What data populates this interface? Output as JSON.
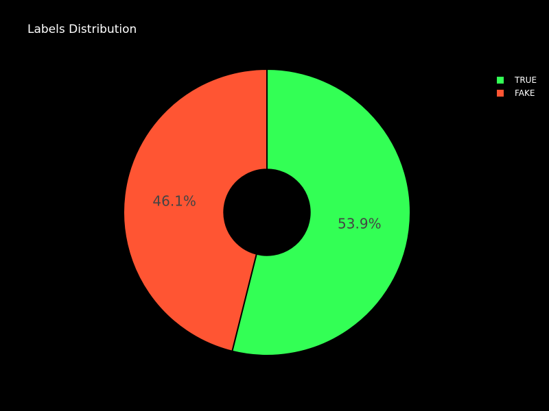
{
  "chart_data": {
    "type": "pie",
    "title": "Labels Distribution",
    "hole": 0.3,
    "labels": [
      "TRUE",
      "FAKE"
    ],
    "values": [
      53.9,
      46.1
    ],
    "slice_labels": [
      "53.9%",
      "46.1%"
    ],
    "colors": [
      "#33ff55",
      "#ff5533"
    ],
    "legend_position": "top-right"
  },
  "background": "#000000",
  "label_color": "#444444"
}
